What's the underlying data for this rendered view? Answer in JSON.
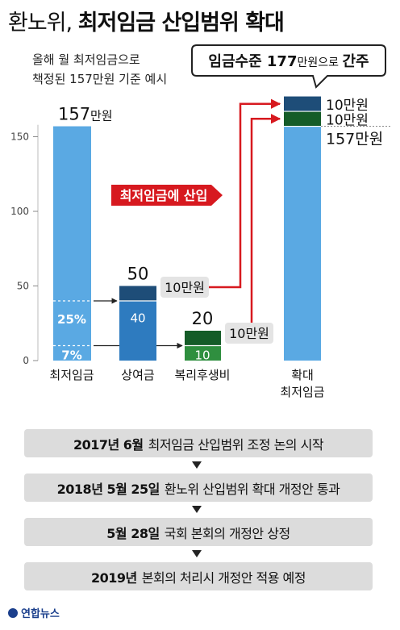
{
  "title": {
    "light": "환노위,",
    "bold": "최저임금 산입범위 확대"
  },
  "subtitle": {
    "line1": "올해 월 최저임금으로",
    "line2": "책정된 157만원 기준 예시"
  },
  "callout": {
    "prefix": "임금수준 ",
    "num": "177",
    "unit": "만원",
    "mid": "으로 ",
    "suffix": "간주"
  },
  "badge": "최저임금에 산입",
  "colors": {
    "light_blue": "#5aa9e3",
    "mid_blue": "#2e7bbf",
    "navy": "#1e4d78",
    "green": "#2f8f3f",
    "dark_green": "#155c28",
    "red": "#d7191f"
  },
  "chart_data": {
    "type": "bar",
    "ylim": [
      0,
      170
    ],
    "yticks": [
      0,
      50,
      100,
      150
    ],
    "categories": [
      "최저임금",
      "상여금",
      "복리후생비",
      "확대\n최저임금"
    ],
    "bars": [
      {
        "category": "최저임금",
        "total": 157,
        "top_label": "157",
        "top_unit": "만원",
        "inner_labels": [
          {
            "text": "25%",
            "at": 40
          },
          {
            "text": "7%",
            "at": 11
          }
        ]
      },
      {
        "category": "상여금",
        "total": 50,
        "top_label": "50",
        "segments": [
          {
            "value": 40,
            "label": "40"
          },
          {
            "value": 10
          }
        ],
        "side_label": "10만원"
      },
      {
        "category": "복리후생비",
        "total": 20,
        "top_label": "20",
        "segments": [
          {
            "value": 10,
            "label": "10"
          },
          {
            "value": 10
          }
        ],
        "side_label": "10만원"
      },
      {
        "category": "확대 최저임금",
        "total": 177,
        "segments": [
          {
            "value": 157,
            "label": "157만원"
          },
          {
            "value": 10,
            "label": "10만원"
          },
          {
            "value": 10,
            "label": "10만원"
          }
        ]
      }
    ]
  },
  "timeline": [
    {
      "date": "2017년 6월",
      "text": "최저임금 산입범위 조정 논의 시작"
    },
    {
      "date": "2018년 5월 25일",
      "text": "환노위 산입범위 확대 개정안 통과"
    },
    {
      "date": "5월 28일",
      "text": "국회 본회의 개정안 상정"
    },
    {
      "date": "2019년",
      "text": "본회의 처리시 개정안 적용 예정"
    }
  ],
  "footer": {
    "logo": "연합뉴스"
  }
}
